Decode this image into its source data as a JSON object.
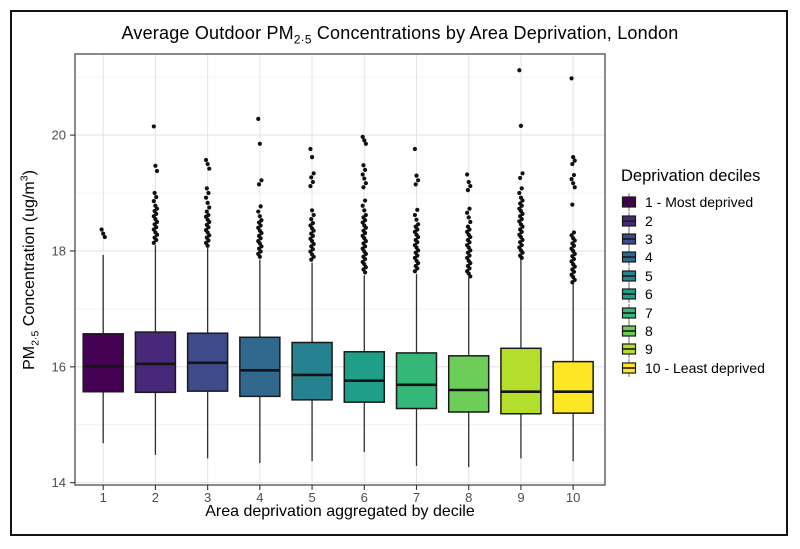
{
  "chart_data": {
    "type": "boxplot",
    "title": {
      "prefix": "Average Outdoor PM",
      "subscript": "2·5",
      "suffix": " Concentrations by Area Deprivation, London"
    },
    "xlabel": "Area deprivation aggregated by decile",
    "ylabel": {
      "prefix": "PM",
      "subscript": "2·5",
      "mid": " Concentration (ug/m",
      "superscript": "3",
      "suffix": ")"
    },
    "x_ticks": [
      "1",
      "2",
      "3",
      "4",
      "5",
      "6",
      "7",
      "8",
      "9",
      "10"
    ],
    "y_ticks": [
      14,
      16,
      18,
      20
    ],
    "y_minor_gridlines": [
      15,
      17,
      19,
      21
    ],
    "xlim": [
      0.46,
      10.61
    ],
    "ylim": [
      13.96,
      21.4
    ],
    "grid": "on",
    "legend_position": "right",
    "legend": {
      "title": "Deprivation deciles",
      "items": [
        "1 - Most deprived",
        "2",
        "3",
        "4",
        "5",
        "6",
        "7",
        "8",
        "9",
        "10 - Least deprived"
      ]
    },
    "series": [
      {
        "decile": 1,
        "color": "#440154",
        "whisker_low": 14.68,
        "q1": 15.57,
        "median": 16.01,
        "q3": 16.57,
        "whisker_high": 17.93,
        "outliers": [
          18.37,
          18.3,
          18.24
        ]
      },
      {
        "decile": 2,
        "color": "#482878",
        "whisker_low": 14.48,
        "q1": 15.56,
        "median": 16.05,
        "q3": 16.6,
        "whisker_high": 18.1,
        "outliers": [
          20.15,
          19.47,
          19.38,
          19.0,
          18.93,
          18.86,
          18.78,
          18.73,
          18.69,
          18.64,
          18.6,
          18.55,
          18.5,
          18.46,
          18.41,
          18.37,
          18.32,
          18.28,
          18.23,
          18.19,
          18.14
        ]
      },
      {
        "decile": 3,
        "color": "#3E4A89",
        "whisker_low": 14.42,
        "q1": 15.58,
        "median": 16.07,
        "q3": 16.58,
        "whisker_high": 18.05,
        "outliers": [
          19.57,
          19.5,
          19.42,
          19.08,
          19.0,
          18.92,
          18.83,
          18.75,
          18.68,
          18.62,
          18.59,
          18.54,
          18.5,
          18.45,
          18.41,
          18.36,
          18.32,
          18.27,
          18.23,
          18.18,
          18.14,
          18.09
        ]
      },
      {
        "decile": 4,
        "color": "#31688E",
        "whisker_low": 14.34,
        "q1": 15.49,
        "median": 15.94,
        "q3": 16.51,
        "whisker_high": 17.85,
        "outliers": [
          20.28,
          19.85,
          19.22,
          19.15,
          18.77,
          18.68,
          18.6,
          18.53,
          18.49,
          18.44,
          18.4,
          18.35,
          18.31,
          18.26,
          18.22,
          18.17,
          18.13,
          18.08,
          18.04,
          17.99,
          17.95,
          17.9
        ]
      },
      {
        "decile": 5,
        "color": "#26828E",
        "whisker_low": 14.37,
        "q1": 15.43,
        "median": 15.86,
        "q3": 16.42,
        "whisker_high": 17.8,
        "outliers": [
          19.76,
          19.62,
          19.34,
          19.27,
          19.19,
          19.12,
          18.7,
          18.62,
          18.55,
          18.48,
          18.44,
          18.39,
          18.35,
          18.3,
          18.26,
          18.21,
          18.17,
          18.12,
          18.08,
          18.03,
          17.99,
          17.94,
          17.9,
          17.85
        ]
      },
      {
        "decile": 6,
        "color": "#1F9E89",
        "whisker_low": 14.53,
        "q1": 15.39,
        "median": 15.76,
        "q3": 16.26,
        "whisker_high": 17.58,
        "outliers": [
          19.97,
          19.91,
          19.85,
          19.48,
          19.4,
          19.32,
          19.25,
          19.17,
          19.1,
          18.87,
          18.78,
          18.7,
          18.62,
          18.58,
          18.53,
          18.49,
          18.44,
          18.4,
          18.35,
          18.31,
          18.26,
          18.22,
          18.17,
          18.13,
          18.08,
          18.04,
          17.99,
          17.95,
          17.9,
          17.86,
          17.81,
          17.77,
          17.72,
          17.68,
          17.63
        ]
      },
      {
        "decile": 7,
        "color": "#35B779",
        "whisker_low": 14.29,
        "q1": 15.28,
        "median": 15.69,
        "q3": 16.24,
        "whisker_high": 17.6,
        "outliers": [
          19.76,
          19.3,
          19.22,
          19.15,
          18.71,
          18.62,
          18.54,
          18.46,
          18.42,
          18.37,
          18.33,
          18.28,
          18.24,
          18.19,
          18.15,
          18.1,
          18.06,
          18.01,
          17.97,
          17.92,
          17.88,
          17.83,
          17.79,
          17.74,
          17.7,
          17.65
        ]
      },
      {
        "decile": 8,
        "color": "#6DCD59",
        "whisker_low": 14.27,
        "q1": 15.22,
        "median": 15.6,
        "q3": 16.19,
        "whisker_high": 17.54,
        "outliers": [
          19.32,
          19.19,
          19.12,
          19.05,
          18.73,
          18.66,
          18.58,
          18.5,
          18.42,
          18.37,
          18.33,
          18.28,
          18.24,
          18.19,
          18.15,
          18.1,
          18.06,
          18.01,
          17.97,
          17.92,
          17.88,
          17.83,
          17.79,
          17.74,
          17.7,
          17.65,
          17.61,
          17.56
        ]
      },
      {
        "decile": 9,
        "color": "#B4DE2C",
        "whisker_low": 14.42,
        "q1": 15.19,
        "median": 15.57,
        "q3": 16.32,
        "whisker_high": 17.86,
        "outliers": [
          21.12,
          20.16,
          19.34,
          19.26,
          19.08,
          19.0,
          18.92,
          18.87,
          18.82,
          18.78,
          18.73,
          18.69,
          18.64,
          18.6,
          18.55,
          18.51,
          18.46,
          18.42,
          18.37,
          18.33,
          18.28,
          18.24,
          18.19,
          18.15,
          18.1,
          18.06,
          18.01,
          17.97,
          17.92,
          17.88
        ]
      },
      {
        "decile": 10,
        "color": "#FDE725",
        "whisker_low": 14.37,
        "q1": 15.2,
        "median": 15.57,
        "q3": 16.09,
        "whisker_high": 17.44,
        "outliers": [
          20.98,
          19.62,
          19.56,
          19.5,
          19.31,
          19.24,
          19.17,
          19.1,
          18.8,
          18.32,
          18.27,
          18.22,
          18.18,
          18.13,
          18.09,
          18.04,
          18.0,
          17.95,
          17.91,
          17.86,
          17.82,
          17.77,
          17.73,
          17.68,
          17.64,
          17.59,
          17.55,
          17.5,
          17.46
        ]
      }
    ],
    "style": {
      "panel_border_color": "#595959",
      "grid_major_color": "#e4e4e4",
      "grid_minor_color": "#f1f1f1",
      "box_border_color": "#1a1a1a",
      "median_color": "#141414",
      "whisker_color": "#2e2e2e",
      "outlier_color": "#111111",
      "tick_label_color": "#4d4d4d",
      "figure_border_color": "#141414"
    }
  }
}
